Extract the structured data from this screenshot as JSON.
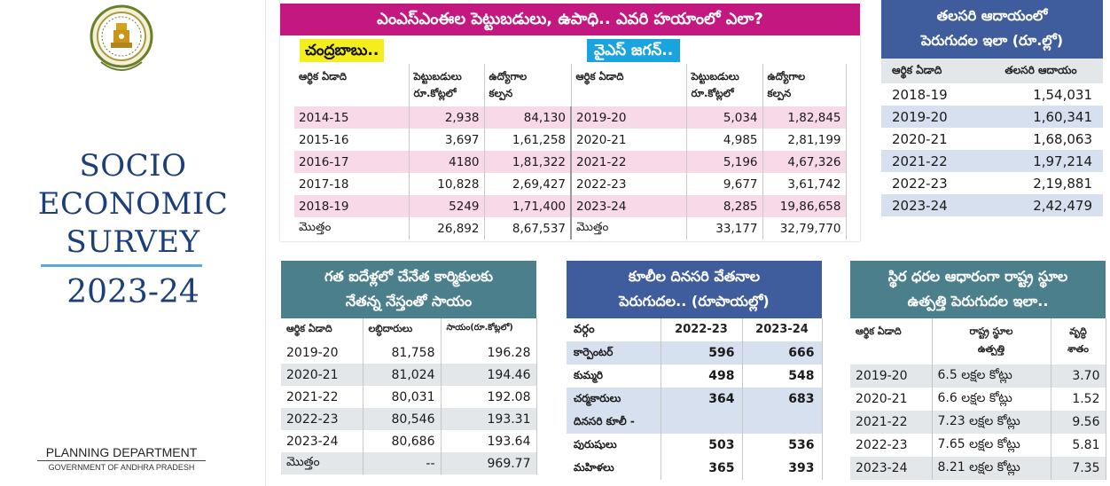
{
  "left": {
    "title_lines": [
      "SOCIO",
      "ECONOMIC",
      "SURVEY"
    ],
    "year": "2023-24",
    "department": "PLANNING DEPARTMENT",
    "government": "GOVERNMENT OF ANDHRA PRADESH"
  },
  "msme": {
    "title": "ఎంఎస్ఎంఈల పెట్టుబడులు, ఉపాధి.. ఎవరి హయాంలో ఎలా?",
    "left_tag": "చంద్రబాబు..",
    "right_tag": "వైఎస్ జగన్..",
    "headers": [
      "ఆర్థిక ఏడాది",
      "పెట్టుబడులు\nరూ.కోట్లలో",
      "ఉద్యోగాల\nకల్పన"
    ],
    "left_rows": [
      [
        "2014-15",
        "2,938",
        "84,130"
      ],
      [
        "2015-16",
        "3,697",
        "1,61,258"
      ],
      [
        "2016-17",
        "4180",
        "1,81,322"
      ],
      [
        "2017-18",
        "10,828",
        "2,69,427"
      ],
      [
        "2018-19",
        "5249",
        "1,71,400"
      ],
      [
        "మొత్తం",
        "26,892",
        "8,67,537"
      ]
    ],
    "right_rows": [
      [
        "2019-20",
        "5,034",
        "1,82,845"
      ],
      [
        "2020-21",
        "4,985",
        "2,81,199"
      ],
      [
        "2021-22",
        "5,196",
        "4,67,326"
      ],
      [
        "2022-23",
        "9,677",
        "3,61,742"
      ],
      [
        "2023-24",
        "8,285",
        "19,86,658"
      ],
      [
        "మొత్తం",
        "33,177",
        "32,79,770"
      ]
    ]
  },
  "per_capita": {
    "title_lines": [
      "తలసరి ఆదాయంలో",
      "పెరుగుదల ఇలా (రూ.ల్లో)"
    ],
    "headers": [
      "ఆర్థిక ఏడాది",
      "తలసరి ఆదాయం"
    ],
    "rows": [
      [
        "2018-19",
        "1,54,031"
      ],
      [
        "2019-20",
        "1,60,341"
      ],
      [
        "2020-21",
        "1,68,063"
      ],
      [
        "2021-22",
        "1,97,214"
      ],
      [
        "2022-23",
        "2,19,881"
      ],
      [
        "2023-24",
        "2,42,479"
      ]
    ]
  },
  "weavers": {
    "title_lines": [
      "గత ఐదేళ్లలో చేనేత కార్మికులకు",
      "నేతన్న నేస్తంతో సాయం"
    ],
    "headers": [
      "ఆర్థిక ఏడాది",
      "లబ్ధిదారులు",
      "సాయం(రూ.కోట్లలో)"
    ],
    "rows": [
      [
        "2019-20",
        "81,758",
        "196.28"
      ],
      [
        "2020-21",
        "81,024",
        "194.46"
      ],
      [
        "2021-22",
        "80,031",
        "192.08"
      ],
      [
        "2022-23",
        "80,546",
        "193.31"
      ],
      [
        "2023-24",
        "80,686",
        "193.64"
      ],
      [
        "మొత్తం",
        "--",
        "969.77"
      ]
    ]
  },
  "wages": {
    "title_lines": [
      "కూలీల దినసరి వేతనాల",
      "పెరుగుదల.. (రూపాయల్లో)"
    ],
    "headers": [
      "వర్గం",
      "2022-23",
      "2023-24"
    ],
    "rows": [
      [
        "కార్పెంటర్",
        "596",
        "666"
      ],
      [
        "కుమ్మరి",
        "498",
        "548"
      ],
      [
        "చర్మకారులు",
        "364",
        "683"
      ],
      [
        "దినసరి కూలీ -",
        "",
        ""
      ],
      [
        "పురుషులు",
        "503",
        "536"
      ],
      [
        "మహిళలు",
        "365",
        "393"
      ]
    ]
  },
  "gsdp": {
    "title_lines": [
      "స్థిర ధరల ఆధారంగా రాష్ట్ర స్థూల",
      "ఉత్పత్తి పెరుగుదల ఇలా.."
    ],
    "headers": [
      "ఆర్థిక ఏడాది",
      "రాష్ట్ర స్థూల\nఉత్పత్తి",
      "వృద్ధి\nశాతం"
    ],
    "rows": [
      [
        "2019-20",
        "6.5 లక్షల కోట్లు",
        "3.70"
      ],
      [
        "2020-21",
        "6.6 లక్షల కోట్లు",
        "1.52"
      ],
      [
        "2021-22",
        "7.23 లక్షల కోట్లు",
        "9.56"
      ],
      [
        "2022-23",
        "7.65 లక్షల కోట్లు",
        "5.81"
      ],
      [
        "2023-24",
        "8.21 లక్షల కోట్లు",
        "7.35"
      ]
    ]
  },
  "colors": {
    "msme_title": "#c2187f",
    "cbn_tag": "#f4ee1d",
    "jagan_tag": "#1aa4df",
    "teal_header": "#4b7f8c",
    "blue_header": "#3f5c9d",
    "survey_blue": "#1c3f7a"
  }
}
